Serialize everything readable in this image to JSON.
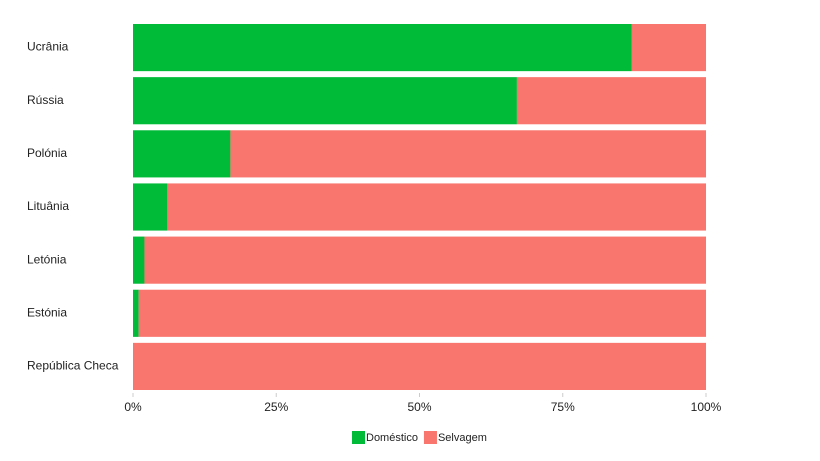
{
  "chart_data": {
    "type": "stacked-bar",
    "categories": [
      "Ucrânia",
      "Rússia",
      "Polónia",
      "Lituânia",
      "Letónia",
      "Estónia",
      "República Checa"
    ],
    "series": [
      {
        "name": "Doméstico",
        "color": "#00bb38",
        "values": [
          87,
          67,
          17,
          6,
          2,
          1,
          0
        ]
      },
      {
        "name": "Selvagem",
        "color": "#f8766d",
        "values": [
          13,
          33,
          83,
          94,
          98,
          99,
          100
        ]
      }
    ],
    "xlim": [
      0,
      100
    ],
    "xticks": [
      {
        "value": 0,
        "label": "0%"
      },
      {
        "value": 25,
        "label": "25%"
      },
      {
        "value": 50,
        "label": "50%"
      },
      {
        "value": 75,
        "label": "75%"
      },
      {
        "value": 100,
        "label": "100%"
      }
    ],
    "legend": "bottom"
  }
}
